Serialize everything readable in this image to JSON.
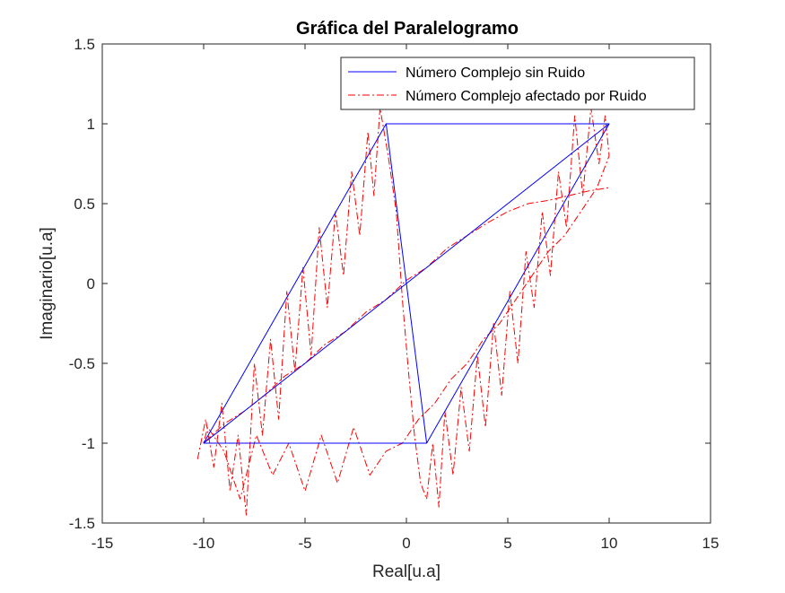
{
  "chart_data": {
    "type": "line",
    "title": "Gráfica del Paralelogramo",
    "xlabel": "Real[u.a]",
    "ylabel": "Imaginario[u.a]",
    "xlim": [
      -15,
      15
    ],
    "ylim": [
      -1.5,
      1.5
    ],
    "xticks": [
      -15,
      -10,
      -5,
      0,
      5,
      10,
      15
    ],
    "xtick_labels": [
      "-15",
      "-10",
      "-5",
      "0",
      "5",
      "10",
      "15"
    ],
    "yticks": [
      -1.5,
      -1,
      -0.5,
      0,
      0.5,
      1,
      1.5
    ],
    "ytick_labels": [
      "-1.5",
      "-1",
      "-0.5",
      "0",
      "0.5",
      "1",
      "1.5"
    ],
    "grid": false,
    "legend_position": "top-right",
    "series": [
      {
        "name": "Número Complejo sin Ruido",
        "color": "#0000ff",
        "style": "solid",
        "x": [
          -1,
          10,
          1,
          -10,
          -1,
          1,
          -10,
          10
        ],
        "y": [
          1,
          1,
          -1,
          -1,
          1,
          -1,
          -1,
          1
        ]
      },
      {
        "name": "Número Complejo afectado por Ruido",
        "color": "#ff0000",
        "style": "dash-dot",
        "x": [
          -10.3,
          -9.9,
          -9.5,
          -9.1,
          -8.7,
          -8.3,
          -7.9,
          -7.5,
          -7.1,
          -6.7,
          -6.3,
          -5.9,
          -5.5,
          -5.1,
          -4.7,
          -4.3,
          -3.9,
          -3.5,
          -3.1,
          -2.7,
          -2.3,
          -1.9,
          -1.6,
          -1.3,
          -0.9,
          -0.5,
          -0.2,
          0.1,
          0.4,
          0.7,
          1.0,
          1.3,
          1.6,
          1.9,
          2.3,
          2.7,
          3.1,
          3.5,
          3.9,
          4.3,
          4.7,
          5.1,
          5.5,
          5.9,
          6.3,
          6.7,
          7.1,
          7.5,
          7.9,
          8.3,
          8.7,
          9.1,
          9.5,
          9.8,
          10.0,
          9.4,
          8.6,
          7.8,
          7.0,
          6.2,
          5.4,
          4.6,
          3.8,
          3.0,
          2.2,
          1.4,
          0.6,
          -0.2,
          -1.0,
          -1.8,
          -2.6,
          -3.4,
          -4.2,
          -5.0,
          -5.8,
          -6.6,
          -7.4,
          -8.2,
          -9.0,
          -9.8,
          -10.0,
          -9.0,
          -8.0,
          -7.0,
          -6.0,
          -5.0,
          -4.0,
          -3.0,
          -2.0,
          -1.0,
          0.0,
          1.0,
          2.0,
          3.0,
          4.0,
          5.0,
          6.0,
          7.0,
          8.0,
          9.0,
          10.0
        ],
        "y": [
          -1.1,
          -0.85,
          -1.15,
          -0.75,
          -1.3,
          -0.95,
          -1.45,
          -0.5,
          -0.95,
          -0.35,
          -0.85,
          -0.05,
          -0.55,
          0.1,
          -0.45,
          0.35,
          -0.15,
          0.45,
          0.05,
          0.7,
          0.3,
          0.95,
          0.55,
          1.1,
          0.8,
          0.45,
          -0.1,
          -0.55,
          -0.95,
          -1.25,
          -1.35,
          -1.0,
          -1.4,
          -0.8,
          -1.2,
          -0.65,
          -1.05,
          -0.45,
          -0.9,
          -0.25,
          -0.7,
          -0.05,
          -0.5,
          0.2,
          -0.15,
          0.45,
          0.05,
          0.7,
          0.35,
          1.05,
          0.55,
          1.1,
          0.75,
          1.05,
          0.8,
          0.6,
          0.45,
          0.3,
          0.2,
          0.05,
          -0.1,
          -0.25,
          -0.35,
          -0.5,
          -0.6,
          -0.75,
          -0.85,
          -1.0,
          -1.05,
          -1.2,
          -0.9,
          -1.25,
          -0.95,
          -1.3,
          -1.0,
          -1.2,
          -0.95,
          -1.35,
          -1.05,
          -0.9,
          -1.0,
          -0.88,
          -0.8,
          -0.7,
          -0.58,
          -0.5,
          -0.38,
          -0.3,
          -0.18,
          -0.1,
          0.02,
          0.1,
          0.22,
          0.3,
          0.38,
          0.45,
          0.5,
          0.52,
          0.55,
          0.58,
          0.6
        ]
      }
    ]
  }
}
